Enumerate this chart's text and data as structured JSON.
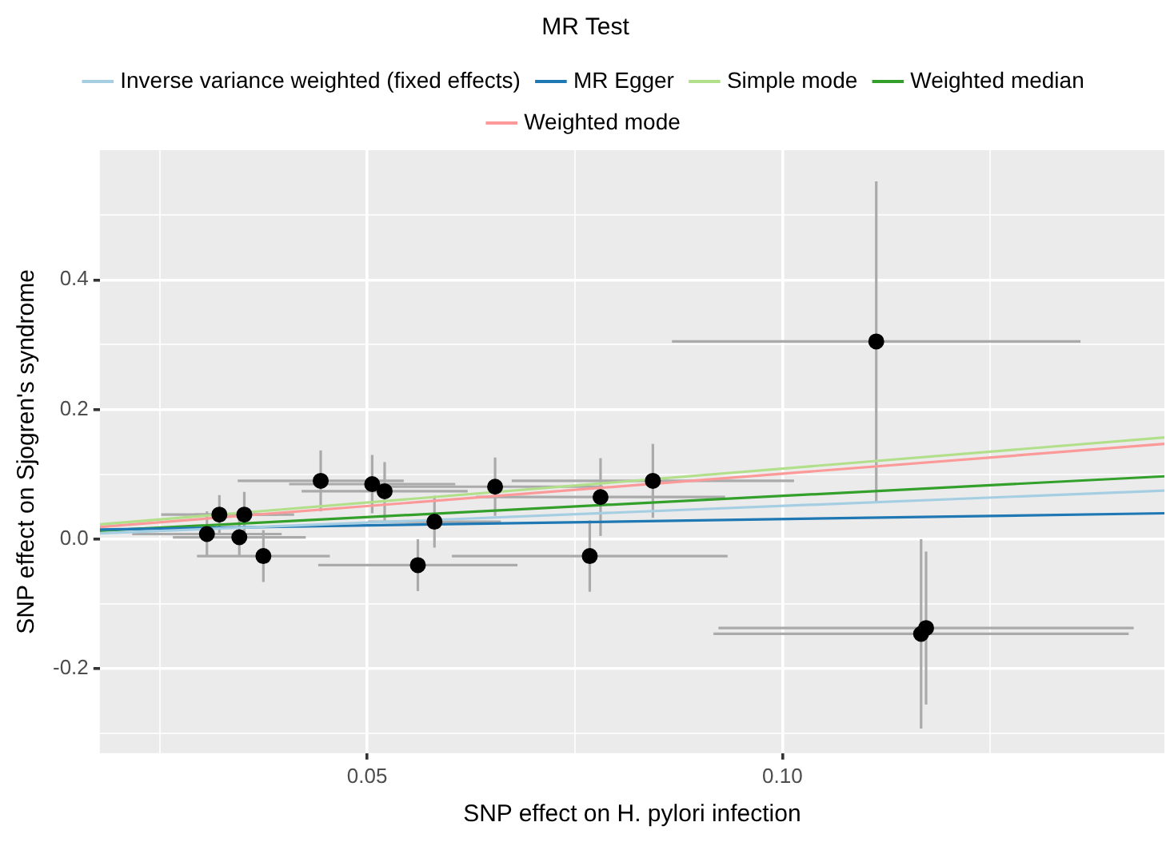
{
  "chart_data": {
    "type": "scatter",
    "xlabel": "SNP effect on H. pylori infection",
    "ylabel": "SNP effect on Sjogren's syndrome",
    "legend_title": "MR Test",
    "legend": "top",
    "grid": true,
    "xlim": [
      0.0178,
      0.146
    ],
    "ylim": [
      -0.33,
      0.6
    ],
    "xticks": [
      {
        "value": 0.025,
        "label": null
      },
      0.05,
      {
        "value": 0.075,
        "label": null
      },
      {
        "value": 0.1,
        "label": "0.10"
      },
      {
        "value": 0.125,
        "label": null
      }
    ],
    "yticks": [
      {
        "value": -0.3,
        "label": null
      },
      {
        "value": -0.2,
        "label": "-0.2"
      },
      {
        "value": -0.1,
        "label": null
      },
      {
        "value": 0,
        "label": "0.0"
      },
      {
        "value": 0.1,
        "label": null
      },
      {
        "value": 0.2,
        "label": "0.2"
      },
      {
        "value": 0.3,
        "label": null
      },
      {
        "value": 0.4,
        "label": "0.4"
      },
      {
        "value": 0.5,
        "label": null
      }
    ],
    "series": [
      {
        "marker": "circle",
        "color": "#000000",
        "x": [
          0.0307,
          0.0322,
          0.0346,
          0.0352,
          0.0375,
          0.0444,
          0.0506,
          0.0521,
          0.0561,
          0.0581,
          0.0654,
          0.0768,
          0.0781,
          0.0844,
          0.1113,
          0.1167,
          0.1173
        ],
        "values": [
          0.008,
          0.038,
          0.003,
          0.038,
          -0.026,
          0.09,
          0.085,
          0.074,
          -0.04,
          0.027,
          0.081,
          -0.026,
          0.065,
          0.09,
          0.305,
          -0.146,
          -0.137
        ],
        "xerrors": [
          0.009,
          0.007,
          0.008,
          0.006,
          0.008,
          0.01,
          0.01,
          0.01,
          0.012,
          0.008,
          0.013,
          0.0166,
          0.015,
          0.017,
          0.0246,
          0.025,
          0.025
        ],
        "errors": [
          0.035,
          0.03,
          0.03,
          0.035,
          0.04,
          0.047,
          0.045,
          0.045,
          0.04,
          0.04,
          0.045,
          0.055,
          0.06,
          0.057,
          0.247,
          0.146,
          0.118
        ]
      },
      {
        "type": "line",
        "name": "Inverse variance weighted (fixed effects)",
        "color": "#a6cee3",
        "x": [
          0.0178,
          0.146
        ],
        "values": [
          0.009,
          0.075
        ]
      },
      {
        "type": "line",
        "name": "MR Egger",
        "color": "#1f78b4",
        "x": [
          0.0178,
          0.146
        ],
        "values": [
          0.015,
          0.04
        ]
      },
      {
        "type": "line",
        "name": "Simple mode",
        "color": "#b2df8a",
        "x": [
          0.0178,
          0.146
        ],
        "values": [
          0.023,
          0.157
        ]
      },
      {
        "type": "line",
        "name": "Weighted median",
        "color": "#33a02c",
        "x": [
          0.0178,
          0.146
        ],
        "values": [
          0.013,
          0.097
        ]
      },
      {
        "type": "line",
        "name": "Weighted mode",
        "color": "#fb9a99",
        "x": [
          0.0178,
          0.146
        ],
        "values": [
          0.019,
          0.147
        ]
      }
    ]
  }
}
